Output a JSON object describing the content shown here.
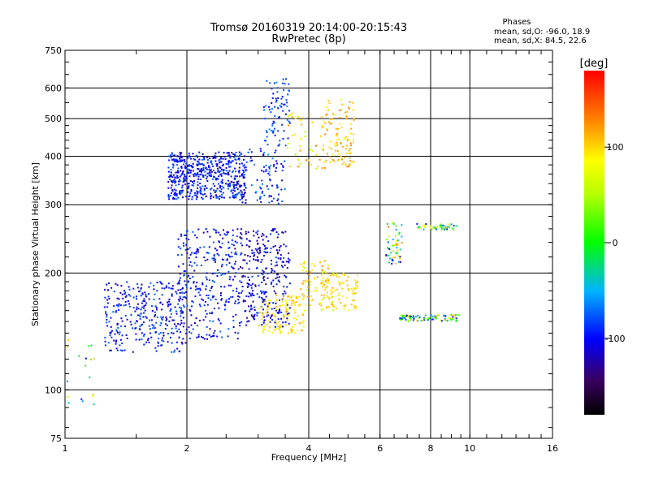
{
  "chart_data": {
    "type": "scatter",
    "title": "Tromsø 20160319 20:14:00-20:15:43",
    "subtitle": "RwPretec (8p)",
    "xlabel": "Frequency [MHz]",
    "ylabel": "Stationary phase Virtual Height [km]",
    "x_scale": "log",
    "y_scale": "log",
    "xlim": [
      1,
      16
    ],
    "ylim": [
      75,
      750
    ],
    "x_ticks": [
      1,
      2,
      4,
      6,
      8,
      10,
      16
    ],
    "x_tick_labels": [
      "1",
      "2",
      "4",
      "6",
      "8",
      "10",
      "16"
    ],
    "y_ticks": [
      75,
      100,
      200,
      300,
      400,
      500,
      600,
      750
    ],
    "y_tick_labels": [
      "75",
      "100",
      "200",
      "300",
      "400",
      "500",
      "600",
      "750"
    ],
    "grid": true,
    "stats": {
      "heading": "Phases",
      "line_o": "mean, sd,O: -96.0, 18.9",
      "line_x": "mean, sd,X:  84.5, 22.6"
    },
    "colorbar": {
      "label": "[deg]",
      "range": [
        -180,
        180
      ],
      "ticks": [
        100,
        0,
        -100
      ],
      "tick_labels": [
        "100",
        "0",
        "-100"
      ]
    },
    "clusters": [
      {
        "x": [
          1.8,
          2.8
        ],
        "y": [
          310,
          410
        ],
        "phase": [
          -125,
          -70
        ],
        "n": 560
      },
      {
        "x": [
          2.7,
          3.5
        ],
        "y": [
          300,
          420
        ],
        "phase": [
          -120,
          -60
        ],
        "n": 90
      },
      {
        "x": [
          3.1,
          3.6
        ],
        "y": [
          420,
          640
        ],
        "phase": [
          -110,
          -60
        ],
        "n": 80
      },
      {
        "x": [
          3.5,
          4.3
        ],
        "y": [
          370,
          520
        ],
        "phase": [
          40,
          140
        ],
        "n": 40
      },
      {
        "x": [
          4.3,
          5.2
        ],
        "y": [
          370,
          560
        ],
        "phase": [
          85,
          130
        ],
        "n": 120
      },
      {
        "x": [
          1.25,
          2.0
        ],
        "y": [
          125,
          190
        ],
        "phase": [
          -125,
          -70
        ],
        "n": 330
      },
      {
        "x": [
          1.9,
          2.7
        ],
        "y": [
          135,
          260
        ],
        "phase": [
          -125,
          -70
        ],
        "n": 300
      },
      {
        "x": [
          2.7,
          3.6
        ],
        "y": [
          145,
          260
        ],
        "phase": [
          -145,
          -80
        ],
        "n": 300
      },
      {
        "x": [
          3.0,
          3.9
        ],
        "y": [
          140,
          175
        ],
        "phase": [
          80,
          115
        ],
        "n": 120
      },
      {
        "x": [
          3.8,
          4.6
        ],
        "y": [
          160,
          215
        ],
        "phase": [
          60,
          125
        ],
        "n": 80
      },
      {
        "x": [
          4.3,
          5.3
        ],
        "y": [
          160,
          200
        ],
        "phase": [
          90,
          110
        ],
        "n": 80
      },
      {
        "x": [
          6.2,
          6.8
        ],
        "y": [
          210,
          270
        ],
        "phase": [
          -140,
          140
        ],
        "n": 50
      },
      {
        "x": [
          6.7,
          9.4
        ],
        "y": [
          150,
          156
        ],
        "phase": [
          -110,
          120
        ],
        "n": 90
      },
      {
        "x": [
          7.4,
          9.3
        ],
        "y": [
          258,
          268
        ],
        "phase": [
          -120,
          110
        ],
        "n": 50
      },
      {
        "x": [
          1.0,
          1.2
        ],
        "y": [
          90,
          135
        ],
        "phase": [
          -120,
          120
        ],
        "n": 18
      }
    ]
  }
}
